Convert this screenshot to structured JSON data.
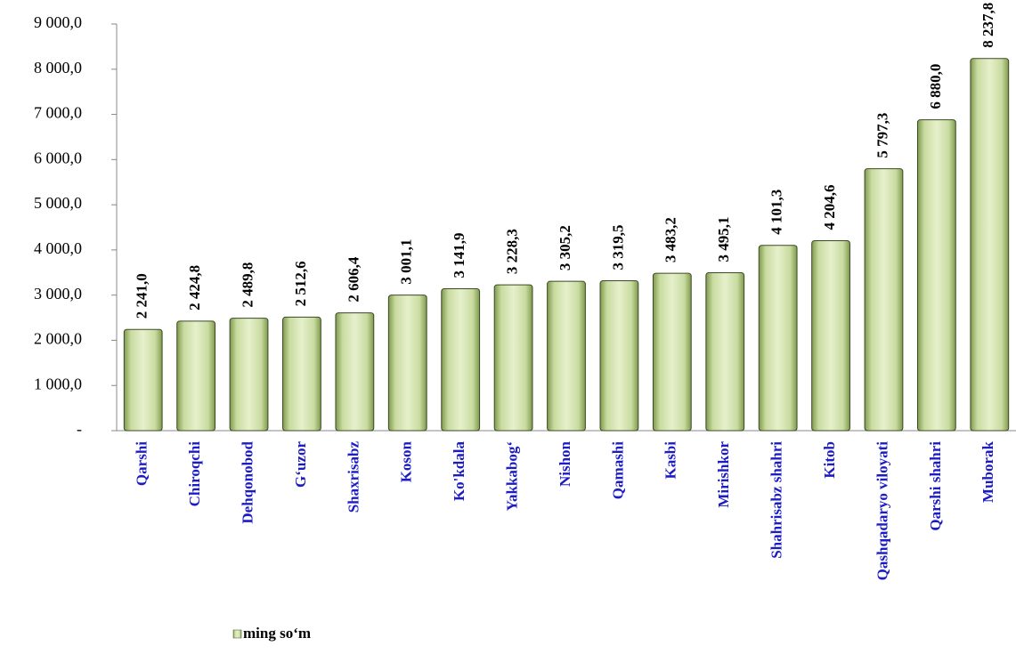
{
  "chart_data": {
    "type": "bar",
    "categories": [
      "Qarshi",
      "Chiroqchi",
      "Dehqonobod",
      "G‘uzor",
      "Shaxrisabz",
      "Koson",
      "Ko'kdala",
      "Yakkabog‘",
      "Nishon",
      "Qamashi",
      "Kasbi",
      "Mirishkor",
      "Shahrisabz shahri",
      "Kitob",
      "Qashqadaryo viloyati",
      "Qarshi shahri",
      "Muborak"
    ],
    "series": [
      {
        "name": "ming so‘m",
        "color": "#c5d89a",
        "values": [
          2241.0,
          2424.8,
          2489.8,
          2512.6,
          2606.4,
          3001.1,
          3141.9,
          3228.3,
          3305.2,
          3319.5,
          3483.2,
          3495.1,
          4101.3,
          4204.6,
          5797.3,
          6880.0,
          8237.8
        ],
        "value_labels": [
          "2 241,0",
          "2 424,8",
          "2 489,8",
          "2 512,6",
          "2 606,4",
          "3 001,1",
          "3 141,9",
          "3 228,3",
          "3 305,2",
          "3 319,5",
          "3 483,2",
          "3 495,1",
          "4 101,3",
          "4 204,6",
          "5 797,3",
          "6 880,0",
          "8 237,8"
        ]
      }
    ],
    "ylim": [
      0,
      9000
    ],
    "yticks": [
      {
        "value": 0,
        "label": "-"
      },
      {
        "value": 1000,
        "label": "1 000,0"
      },
      {
        "value": 2000,
        "label": "2 000,0"
      },
      {
        "value": 3000,
        "label": "3 000,0"
      },
      {
        "value": 4000,
        "label": "4 000,0"
      },
      {
        "value": 5000,
        "label": "5 000,0"
      },
      {
        "value": 6000,
        "label": "6 000,0"
      },
      {
        "value": 7000,
        "label": "7 000,0"
      },
      {
        "value": 8000,
        "label": "8 000,0"
      },
      {
        "value": 9000,
        "label": "9 000,0"
      }
    ],
    "legend": "bottom-left"
  }
}
